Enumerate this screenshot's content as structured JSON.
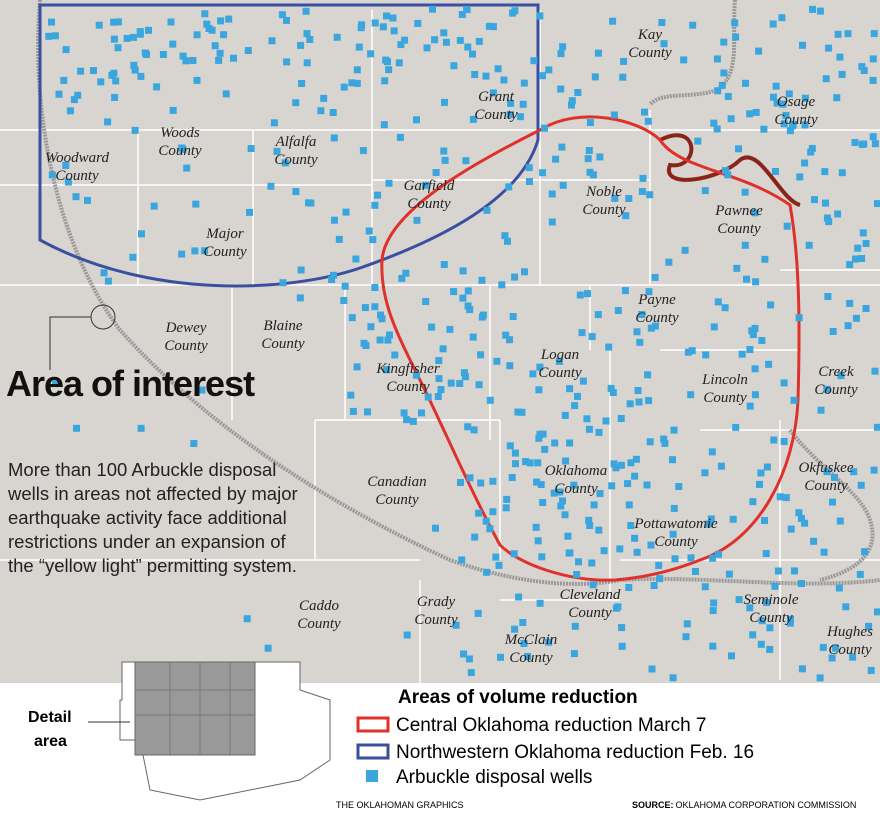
{
  "title": "Area of interest",
  "description": "More than 100 Arbuckle disposal wells in areas not affected by major earthquake activity face additional restrictions under an expansion of the “yellow light” permitting system.",
  "counties": [
    {
      "lines": [
        "Woodward",
        "County"
      ]
    },
    {
      "lines": [
        "Woods",
        "County"
      ]
    },
    {
      "lines": [
        "Alfalfa",
        "County"
      ]
    },
    {
      "lines": [
        "Grant",
        "County"
      ]
    },
    {
      "lines": [
        "Kay",
        "County"
      ]
    },
    {
      "lines": [
        "Osage",
        "County"
      ]
    },
    {
      "lines": [
        "Garfield",
        "County"
      ]
    },
    {
      "lines": [
        "Noble",
        "County"
      ]
    },
    {
      "lines": [
        "Pawnee",
        "County"
      ]
    },
    {
      "lines": [
        "Major",
        "County"
      ]
    },
    {
      "lines": [
        "Dewey",
        "County"
      ]
    },
    {
      "lines": [
        "Blaine",
        "County"
      ]
    },
    {
      "lines": [
        "Payne",
        "County"
      ]
    },
    {
      "lines": [
        "Creek",
        "County"
      ]
    },
    {
      "lines": [
        "Kingfisher",
        "County"
      ]
    },
    {
      "lines": [
        "Logan",
        "County"
      ]
    },
    {
      "lines": [
        "Lincoln",
        "County"
      ]
    },
    {
      "lines": [
        "Canadian",
        "County"
      ]
    },
    {
      "lines": [
        "Oklahoma",
        "County"
      ]
    },
    {
      "lines": [
        "Okfuskee",
        "County"
      ]
    },
    {
      "lines": [
        "Pottawatomie",
        "County"
      ]
    },
    {
      "lines": [
        "Cleveland",
        "County"
      ]
    },
    {
      "lines": [
        "Caddo",
        "County"
      ]
    },
    {
      "lines": [
        "Grady",
        "County"
      ]
    },
    {
      "lines": [
        "McClain",
        "County"
      ]
    },
    {
      "lines": [
        "Seminole",
        "County"
      ]
    },
    {
      "lines": [
        "Hughes",
        "County"
      ]
    }
  ],
  "inset_label": [
    "Detail",
    "area"
  ],
  "legend": {
    "title": "Areas of volume reduction",
    "items": [
      "Central Oklahoma reduction March 7",
      "Northwestern Oklahoma reduction Feb. 16",
      "Arbuckle disposal wells"
    ]
  },
  "credit": "THE OKLAHOMAN GRAPHICS",
  "source": {
    "label": "SOURCE:",
    "text": "OKLAHOMA CORPORATION COMMISSION"
  }
}
